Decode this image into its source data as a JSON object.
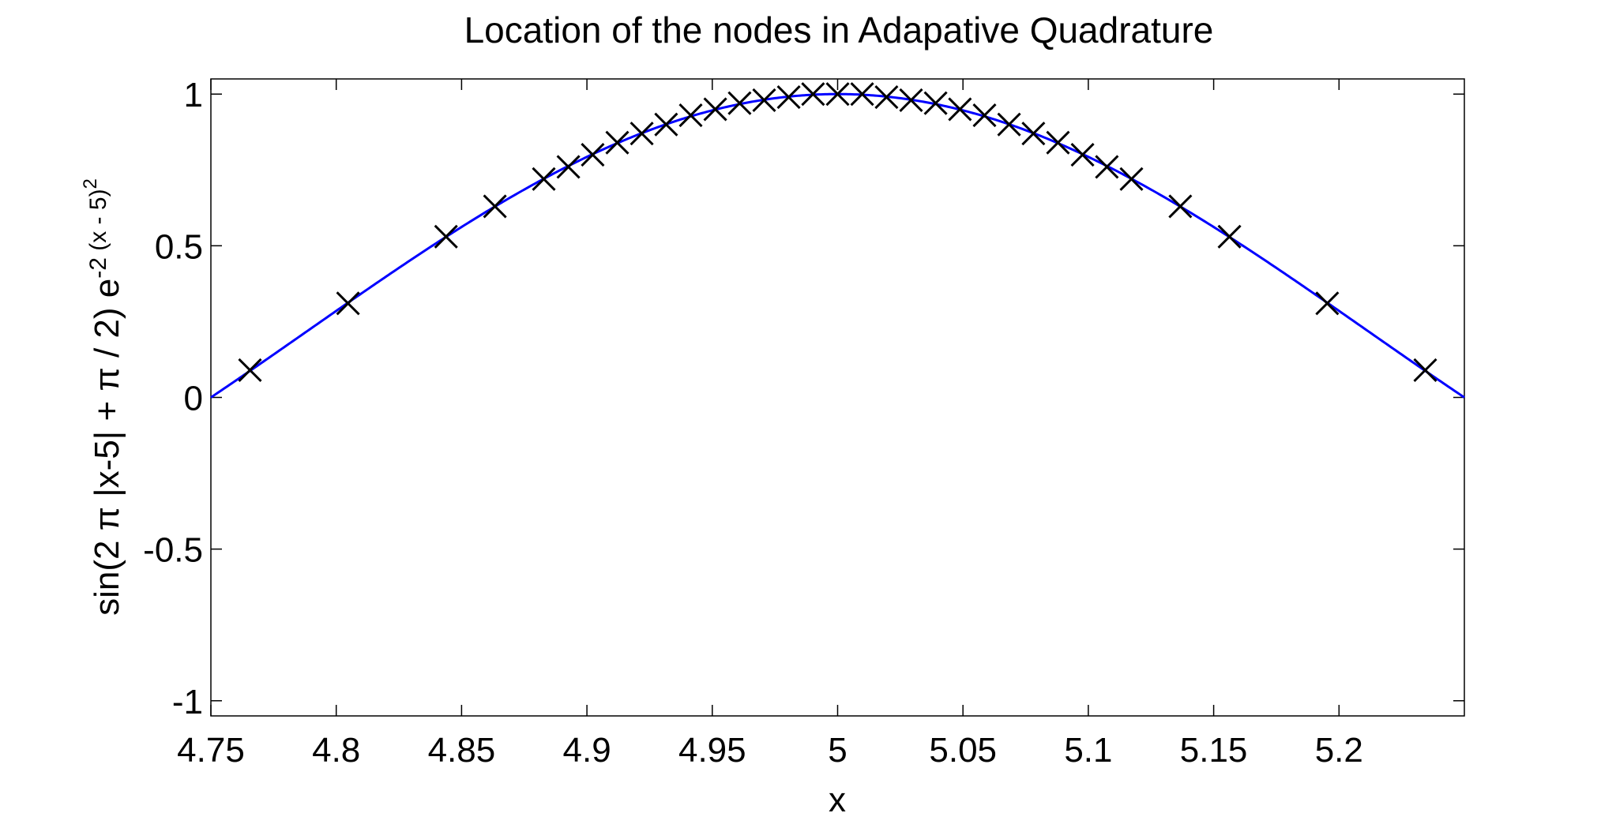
{
  "chart_data": {
    "type": "line",
    "title": "Location of the nodes in Adapative Quadrature",
    "xlabel": "x",
    "ylabel": {
      "base": "sin(2 π |x-5| + π / 2) e",
      "exponent": "-2 (x - 5)",
      "exponent_power": "2"
    },
    "xlim": [
      4.75,
      5.25
    ],
    "ylim": [
      -1.05,
      1.05
    ],
    "xticks": [
      4.75,
      4.8,
      4.85,
      4.9,
      4.95,
      5,
      5.05,
      5.1,
      5.15,
      5.2
    ],
    "xtick_labels": [
      "4.75",
      "4.8",
      "4.85",
      "4.9",
      "4.95",
      "5",
      "5.05",
      "5.1",
      "5.15",
      "5.2"
    ],
    "yticks": [
      1,
      0.5,
      0,
      -0.5,
      -1
    ],
    "ytick_labels": [
      "1",
      "0.5",
      "0",
      "-0.5",
      "-1"
    ],
    "grid": false,
    "box": true,
    "series": [
      {
        "kind": "line",
        "color": "#0000ff",
        "function": "sin(2*pi*|x-5| + pi/2) * exp(-2*(x-5)^2)",
        "x_range": [
          4.75,
          5.25
        ]
      },
      {
        "kind": "scatter",
        "marker": "x",
        "color": "#000000",
        "x": [
          4.7656,
          4.8047,
          4.8438,
          4.8633,
          4.8828,
          4.8926,
          4.9023,
          4.9121,
          4.9219,
          4.9316,
          4.9414,
          4.9512,
          4.9609,
          4.9707,
          4.9805,
          4.9902,
          5.0,
          5.0098,
          5.0195,
          5.0293,
          5.0391,
          5.0488,
          5.0586,
          5.0684,
          5.0781,
          5.0879,
          5.0977,
          5.1074,
          5.1172,
          5.1367,
          5.1563,
          5.1953,
          5.2344
        ],
        "y": [
          0.09,
          0.31,
          0.53,
          0.63,
          0.72,
          0.76,
          0.8,
          0.84,
          0.87,
          0.9,
          0.93,
          0.95,
          0.97,
          0.98,
          0.99,
          1.0,
          1.0,
          1.0,
          0.99,
          0.98,
          0.97,
          0.95,
          0.93,
          0.9,
          0.87,
          0.84,
          0.8,
          0.76,
          0.72,
          0.63,
          0.53,
          0.31,
          0.09
        ]
      }
    ],
    "colors": {
      "curve": "#0000ff",
      "markers": "#000000",
      "axes": "#000000",
      "background": "#ffffff"
    }
  }
}
